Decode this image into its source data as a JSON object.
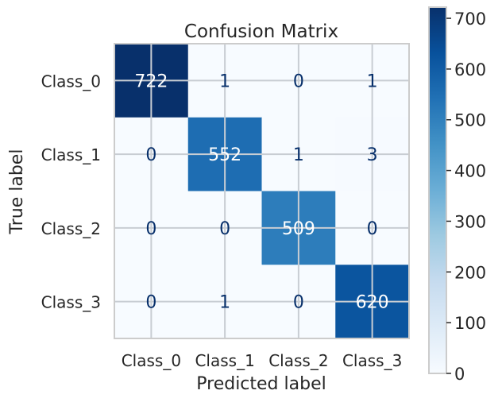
{
  "chart_data": {
    "type": "heatmap",
    "title": "Confusion Matrix",
    "xlabel": "Predicted label",
    "ylabel": "True label",
    "x_categories": [
      "Class_0",
      "Class_1",
      "Class_2",
      "Class_3"
    ],
    "y_categories": [
      "Class_0",
      "Class_1",
      "Class_2",
      "Class_3"
    ],
    "matrix": [
      [
        722,
        1,
        0,
        1
      ],
      [
        0,
        552,
        1,
        3
      ],
      [
        0,
        0,
        509,
        0
      ],
      [
        0,
        1,
        0,
        620
      ]
    ],
    "colormap": "Blues",
    "value_range": [
      0,
      722
    ],
    "grid": true,
    "colorbar": {
      "ticks": [
        0,
        100,
        200,
        300,
        400,
        500,
        600,
        700
      ],
      "placement": "right"
    },
    "colors": {
      "cell_low": "#f7fbff",
      "cell_high": "#08306b",
      "text_dark": "#08306b",
      "text_light": "#ffffff",
      "frame": "#cccccc",
      "gridline": "#c8cdd3",
      "label": "#262626"
    }
  }
}
